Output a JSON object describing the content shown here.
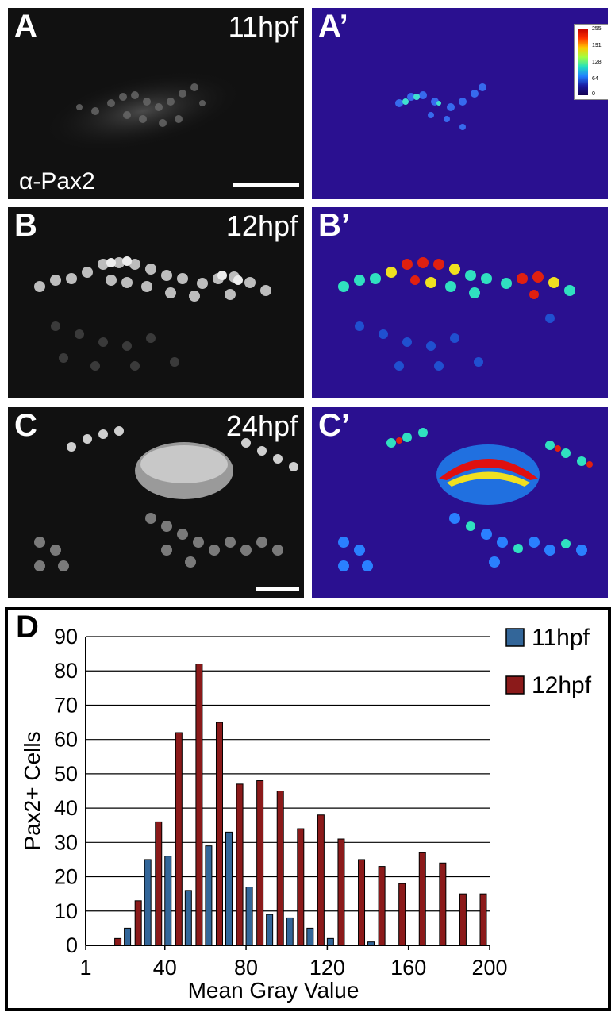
{
  "panels": {
    "A": {
      "letter": "A",
      "time": "11hpf",
      "stain": "α-Pax2"
    },
    "A_prime": {
      "letter": "A’"
    },
    "B": {
      "letter": "B",
      "time": "12hpf"
    },
    "B_prime": {
      "letter": "B’"
    },
    "C": {
      "letter": "C",
      "time": "24hpf"
    },
    "C_prime": {
      "letter": "C’"
    }
  },
  "colorbar": {
    "ticks": [
      "255",
      "191",
      "128",
      "64",
      "0"
    ]
  },
  "colors": {
    "series_11hpf": "#336699",
    "series_12hpf": "#8b1a1a",
    "pseudo_bg": "#2a1090"
  },
  "chart_data": {
    "type": "bar",
    "panel_letter": "D",
    "x": [
      20,
      30,
      40,
      50,
      60,
      70,
      80,
      90,
      100,
      110,
      120,
      130,
      140,
      150,
      160,
      170,
      180,
      190,
      200
    ],
    "series": [
      {
        "name": "11hpf",
        "values": [
          5,
          25,
          26,
          16,
          29,
          33,
          17,
          9,
          8,
          5,
          2,
          0,
          1,
          0,
          0,
          0,
          0,
          0,
          0
        ]
      },
      {
        "name": "12hpf",
        "values": [
          2,
          13,
          36,
          62,
          82,
          65,
          47,
          48,
          45,
          34,
          38,
          31,
          25,
          23,
          18,
          27,
          24,
          15,
          15
        ]
      }
    ],
    "xlabel": "Mean Gray Value",
    "ylabel": "Pax2+ Cells",
    "ylim": [
      0,
      90
    ],
    "yticks": [
      "0",
      "10",
      "20",
      "30",
      "40",
      "50",
      "60",
      "70",
      "80",
      "90"
    ],
    "xticks": [
      "1",
      "40",
      "80",
      "120",
      "160",
      "200"
    ],
    "grid": true,
    "legend_position": "top-right"
  }
}
